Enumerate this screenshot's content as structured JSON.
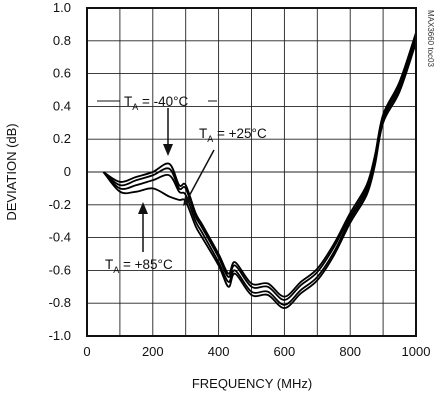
{
  "chart_data": {
    "type": "line",
    "title": "",
    "xlabel": "FREQUENCY (MHz)",
    "ylabel": "DEVIATION (dB)",
    "xlim": [
      0,
      1000
    ],
    "ylim": [
      -1.0,
      1.0
    ],
    "grid": true,
    "legend": "none",
    "x_ticks": [
      "0",
      "200",
      "400",
      "600",
      "800",
      "1000"
    ],
    "y_ticks": [
      "1.0",
      "0.8",
      "0.6",
      "0.4",
      "0.2",
      "0",
      "-0.2",
      "-0.4",
      "-0.6",
      "-0.8",
      "-1.0"
    ],
    "annotations": [
      {
        "base": "T",
        "sub": "A",
        "rest": " = -40°C"
      },
      {
        "base": "T",
        "sub": "A",
        "rest": " = +25°C"
      },
      {
        "base": "T",
        "sub": "A",
        "rest": " = +85°C"
      }
    ],
    "figure_code": "MAX3660 toc03",
    "x": [
      50,
      100,
      150,
      200,
      250,
      280,
      300,
      330,
      350,
      400,
      430,
      450,
      500,
      550,
      600,
      650,
      700,
      750,
      800,
      850,
      875,
      900,
      950,
      1000
    ],
    "series": [
      {
        "values": [
          0.0,
          -0.06,
          -0.03,
          0.0,
          0.05,
          -0.08,
          -0.08,
          -0.25,
          -0.32,
          -0.5,
          -0.62,
          -0.55,
          -0.68,
          -0.68,
          -0.76,
          -0.67,
          -0.59,
          -0.44,
          -0.25,
          -0.08,
          0.1,
          0.35,
          0.55,
          0.85
        ]
      },
      {
        "values": [
          0.0,
          -0.08,
          -0.05,
          -0.02,
          0.02,
          -0.1,
          -0.1,
          -0.27,
          -0.34,
          -0.52,
          -0.64,
          -0.57,
          -0.7,
          -0.7,
          -0.78,
          -0.69,
          -0.61,
          -0.46,
          -0.27,
          -0.1,
          0.08,
          0.34,
          0.53,
          0.83
        ]
      },
      {
        "values": [
          0.0,
          -0.1,
          -0.08,
          -0.05,
          -0.02,
          -0.12,
          -0.14,
          -0.3,
          -0.37,
          -0.55,
          -0.67,
          -0.6,
          -0.73,
          -0.73,
          -0.81,
          -0.72,
          -0.64,
          -0.49,
          -0.29,
          -0.12,
          0.06,
          0.32,
          0.51,
          0.81
        ]
      },
      {
        "values": [
          0.0,
          -0.12,
          -0.12,
          -0.1,
          -0.15,
          -0.17,
          -0.18,
          -0.33,
          -0.4,
          -0.57,
          -0.7,
          -0.62,
          -0.75,
          -0.75,
          -0.83,
          -0.74,
          -0.66,
          -0.51,
          -0.31,
          -0.14,
          0.04,
          0.3,
          0.49,
          0.79
        ]
      }
    ]
  }
}
